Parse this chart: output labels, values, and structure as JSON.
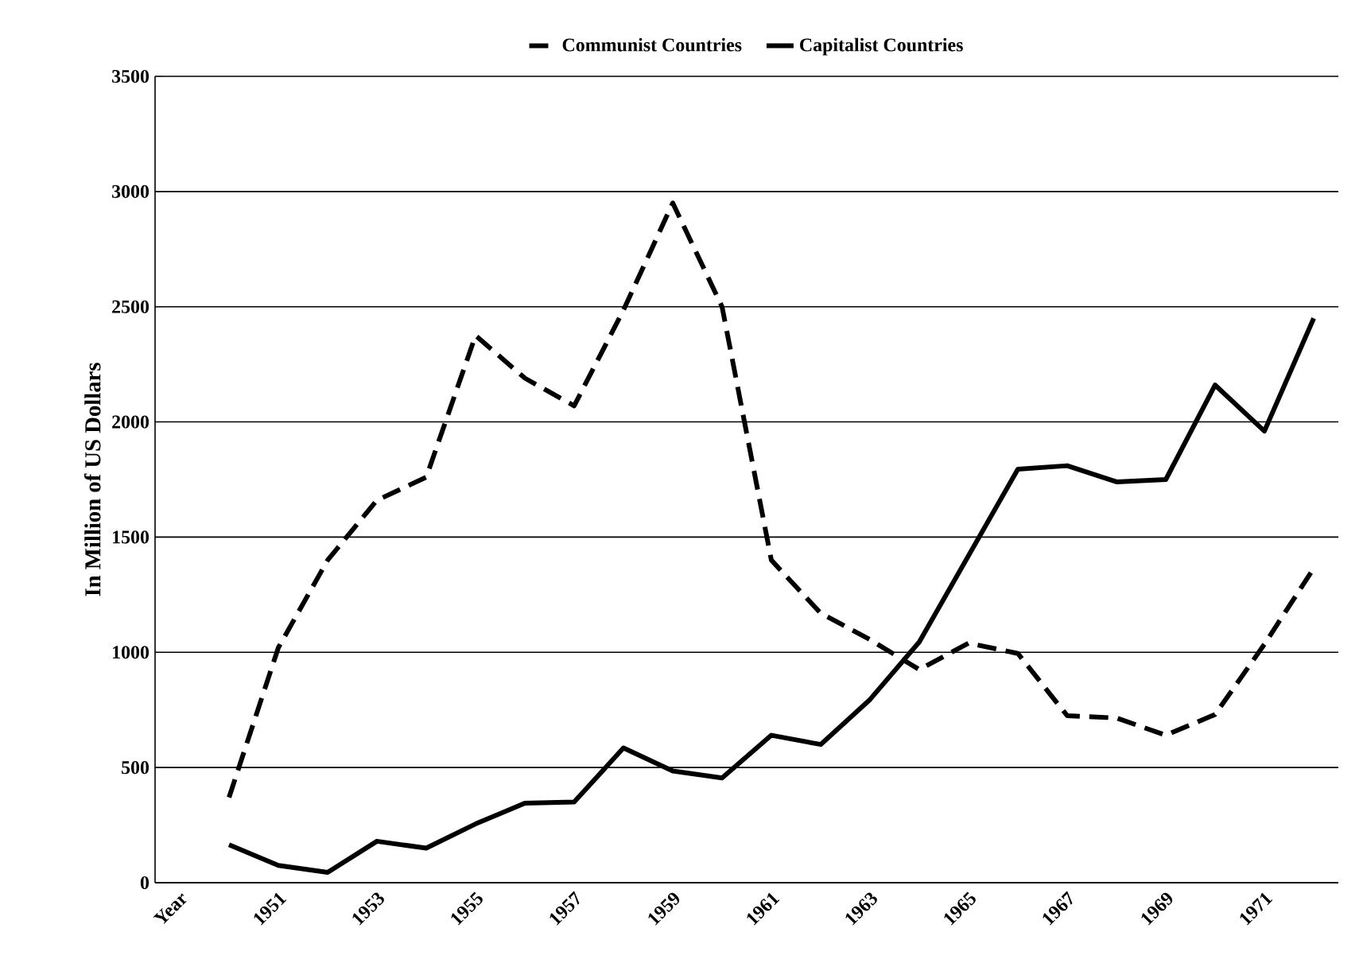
{
  "chart_data": {
    "type": "line",
    "ylabel": "In Million of US Dollars",
    "categories": [
      "Year",
      null,
      "1951",
      null,
      "1953",
      null,
      "1955",
      null,
      "1957",
      null,
      "1959",
      null,
      "1961",
      null,
      "1963",
      null,
      "1965",
      null,
      "1967",
      null,
      "1969",
      null,
      "1971",
      null
    ],
    "series": [
      {
        "name": "Communist Countries",
        "color": "#000000",
        "line_style": "dashed",
        "values": [
          null,
          370,
          1020,
          1400,
          1660,
          1760,
          2375,
          2190,
          2070,
          2485,
          2950,
          2500,
          1400,
          1170,
          1055,
          925,
          1040,
          995,
          725,
          715,
          640,
          730,
          1035,
          1365
        ]
      },
      {
        "name": "Capitalist Countries",
        "color": "#000000",
        "line_style": "solid",
        "values": [
          null,
          165,
          75,
          45,
          180,
          150,
          255,
          345,
          350,
          585,
          485,
          455,
          640,
          600,
          795,
          1045,
          1420,
          1795,
          1810,
          1740,
          1750,
          2160,
          1960,
          2450
        ]
      }
    ],
    "ylim": [
      0,
      3500
    ],
    "yticks": [
      0,
      500,
      1000,
      1500,
      2000,
      2500,
      3000,
      3500
    ],
    "grid": "y",
    "legend": "top",
    "marker": "none"
  }
}
